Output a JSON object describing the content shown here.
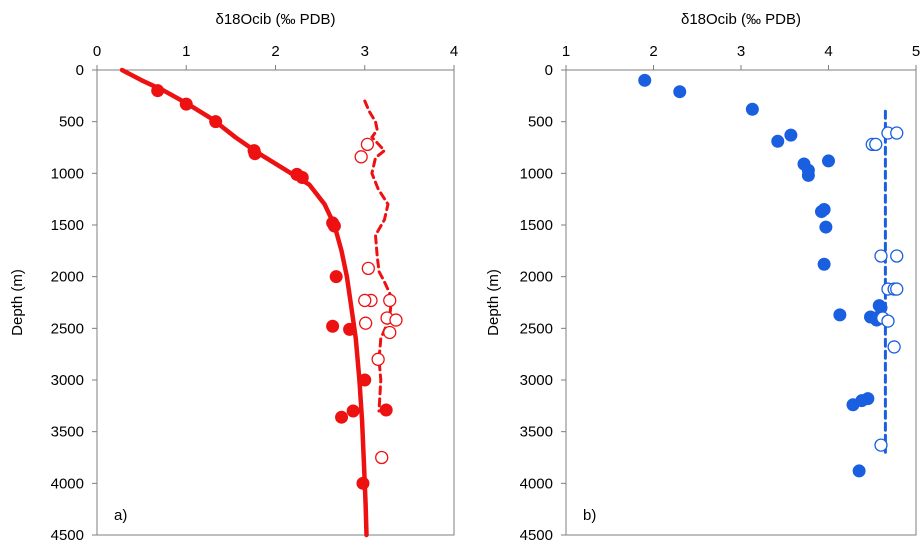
{
  "chart_data": [
    {
      "type": "scatter",
      "panel_label": "a)",
      "title": "δ18Ocib (‰ PDB)",
      "xlabel": "δ18Ocib (‰ PDB)",
      "ylabel": "Depth (m)",
      "xlim": [
        0,
        4
      ],
      "ylim": [
        0,
        4500
      ],
      "y_inverted": true,
      "x_axis_position": "top",
      "xticks": [
        "0",
        "1",
        "2",
        "3",
        "4"
      ],
      "yticks": [
        "0",
        "500",
        "1000",
        "1500",
        "2000",
        "2500",
        "3000",
        "3500",
        "4000",
        "4500"
      ],
      "grid": false,
      "color": "#ee1111",
      "series": [
        {
          "style": "solid-line",
          "points": [
            [
              0.28,
              0
            ],
            [
              0.5,
              100
            ],
            [
              0.75,
              200
            ],
            [
              1.0,
              320
            ],
            [
              1.3,
              480
            ],
            [
              1.55,
              650
            ],
            [
              1.8,
              800
            ],
            [
              2.1,
              960
            ],
            [
              2.38,
              1110
            ],
            [
              2.55,
              1300
            ],
            [
              2.66,
              1500
            ],
            [
              2.74,
              1750
            ],
            [
              2.8,
              2000
            ],
            [
              2.85,
              2300
            ],
            [
              2.9,
              2600
            ],
            [
              2.94,
              3000
            ],
            [
              2.97,
              3400
            ],
            [
              2.99,
              3800
            ],
            [
              3.01,
              4200
            ],
            [
              3.02,
              4500
            ]
          ]
        },
        {
          "style": "dashed-line",
          "points": [
            [
              3.0,
              300
            ],
            [
              3.05,
              400
            ],
            [
              3.12,
              500
            ],
            [
              3.14,
              580
            ],
            [
              3.08,
              650
            ],
            [
              3.22,
              780
            ],
            [
              3.12,
              850
            ],
            [
              3.08,
              1000
            ],
            [
              3.15,
              1150
            ],
            [
              3.26,
              1300
            ],
            [
              3.22,
              1450
            ],
            [
              3.12,
              1600
            ],
            [
              3.14,
              1800
            ],
            [
              3.16,
              1950
            ],
            [
              3.22,
              2050
            ],
            [
              3.3,
              2200
            ],
            [
              3.28,
              2400
            ],
            [
              3.18,
              2600
            ],
            [
              3.16,
              2800
            ],
            [
              3.18,
              3000
            ],
            [
              3.16,
              3300
            ]
          ]
        },
        {
          "style": "filled-markers",
          "points": [
            [
              0.68,
              200
            ],
            [
              1.0,
              330
            ],
            [
              1.33,
              500
            ],
            [
              1.76,
              780
            ],
            [
              1.77,
              810
            ],
            [
              2.24,
              1010
            ],
            [
              2.3,
              1040
            ],
            [
              2.64,
              1480
            ],
            [
              2.66,
              1510
            ],
            [
              2.68,
              2000
            ],
            [
              2.64,
              2480
            ],
            [
              2.83,
              2510
            ],
            [
              3.0,
              3000
            ],
            [
              3.24,
              3290
            ],
            [
              2.87,
              3300
            ],
            [
              2.74,
              3360
            ],
            [
              2.98,
              4000
            ]
          ]
        },
        {
          "style": "open-markers",
          "points": [
            [
              3.03,
              720
            ],
            [
              2.96,
              840
            ],
            [
              3.04,
              1920
            ],
            [
              3.07,
              2230
            ],
            [
              3.0,
              2230
            ],
            [
              3.28,
              2230
            ],
            [
              3.01,
              2450
            ],
            [
              3.25,
              2400
            ],
            [
              3.35,
              2420
            ],
            [
              3.28,
              2540
            ],
            [
              3.15,
              2800
            ],
            [
              3.19,
              3750
            ]
          ]
        }
      ]
    },
    {
      "type": "scatter",
      "panel_label": "b)",
      "title": "δ18Ocib (‰ PDB)",
      "xlabel": "δ18Ocib (‰ PDB)",
      "ylabel": "Depth (m)",
      "xlim": [
        1,
        5
      ],
      "ylim": [
        0,
        4500
      ],
      "y_inverted": true,
      "x_axis_position": "top",
      "xticks": [
        "1",
        "2",
        "3",
        "4",
        "5"
      ],
      "yticks": [
        "0",
        "500",
        "1000",
        "1500",
        "2000",
        "2500",
        "3000",
        "3500",
        "4000",
        "4500"
      ],
      "grid": false,
      "color": "#1a5fe0",
      "series": [
        {
          "style": "dashed-line",
          "points": [
            [
              4.65,
              400
            ],
            [
              4.65,
              3700
            ]
          ]
        },
        {
          "style": "filled-markers",
          "points": [
            [
              1.9,
              100
            ],
            [
              2.3,
              210
            ],
            [
              3.13,
              380
            ],
            [
              3.57,
              630
            ],
            [
              3.42,
              690
            ],
            [
              3.72,
              910
            ],
            [
              3.77,
              970
            ],
            [
              3.77,
              1020
            ],
            [
              4.0,
              880
            ],
            [
              3.92,
              1370
            ],
            [
              3.95,
              1350
            ],
            [
              3.97,
              1520
            ],
            [
              3.95,
              1880
            ],
            [
              4.13,
              2370
            ],
            [
              4.48,
              2390
            ],
            [
              4.54,
              2400
            ],
            [
              4.58,
              2280
            ],
            [
              4.6,
              2300
            ],
            [
              4.55,
              2420
            ],
            [
              4.45,
              3180
            ],
            [
              4.38,
              3200
            ],
            [
              4.28,
              3240
            ],
            [
              4.35,
              3880
            ]
          ]
        },
        {
          "style": "open-markers",
          "points": [
            [
              4.68,
              610
            ],
            [
              4.78,
              610
            ],
            [
              4.5,
              720
            ],
            [
              4.54,
              720
            ],
            [
              4.6,
              1800
            ],
            [
              4.78,
              1800
            ],
            [
              4.68,
              2120
            ],
            [
              4.75,
              2120
            ],
            [
              4.78,
              2120
            ],
            [
              4.62,
              2400
            ],
            [
              4.68,
              2430
            ],
            [
              4.75,
              2680
            ],
            [
              4.6,
              3630
            ]
          ]
        }
      ]
    }
  ]
}
